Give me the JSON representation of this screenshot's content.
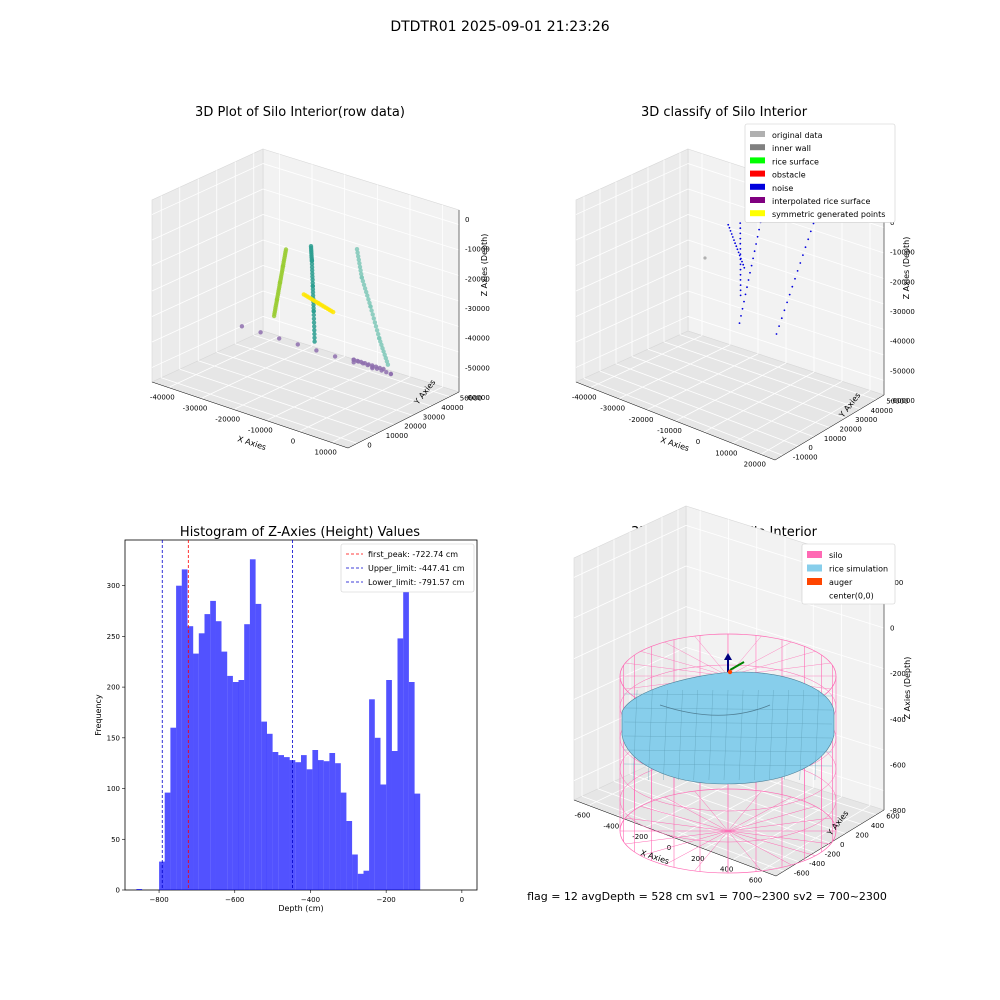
{
  "figure": {
    "title": "DTDTR01 2025-09-01 21:23:26",
    "footer": "flag = 12   avgDepth = 528 cm  sv1 = 700~2300  sv2 = 700~2300"
  },
  "chart_data": [
    {
      "id": "raw",
      "type": "scatter3d",
      "title": "3D Plot of Silo Interior(row data)",
      "xlabel": "X Axies",
      "ylabel": "Y Axies",
      "zlabel": "Z Axies (Depth)",
      "xticks": [
        "-40000",
        "-30000",
        "-20000",
        "-10000",
        "0",
        "10000"
      ],
      "yticks": [
        "0",
        "10000",
        "20000",
        "30000",
        "40000",
        "50000"
      ],
      "zticks": [
        "0",
        "-10000",
        "-20000",
        "-30000",
        "-40000",
        "-50000",
        "-60000"
      ],
      "xlim": [
        -42000,
        15000
      ],
      "ylim": [
        -5000,
        52000
      ],
      "zlim": [
        -68000,
        2000
      ],
      "colormap": "viridis",
      "series": [
        {
          "x": [
            -7000,
            -9000,
            -11000,
            -13000,
            -15000
          ],
          "y": [
            2000,
            4000,
            6000,
            8000,
            10000
          ],
          "z": [
            -4000,
            -12000,
            -20000,
            -28000,
            -36000
          ],
          "color": "#9acd32"
        },
        {
          "x": [
            -2000,
            -4000,
            -6000,
            -8000,
            -10000
          ],
          "y": [
            6000,
            10000,
            14000,
            18000,
            22000
          ],
          "z": [
            -2000,
            -10000,
            -22000,
            -34000,
            -48000
          ],
          "color": "#2a9d8f"
        },
        {
          "x": [
            8000,
            6000,
            4000,
            2000,
            0
          ],
          "y": [
            12000,
            18000,
            26000,
            34000,
            42000
          ],
          "z": [
            -1000,
            -15000,
            -30000,
            -46000,
            -60000
          ],
          "color": "#7fc8b8"
        },
        {
          "x": [
            -12000,
            -10000,
            -8000
          ],
          "y": [
            20000,
            24000,
            28000
          ],
          "z": [
            -30000,
            -34000,
            -38000
          ],
          "color": "#ffe600"
        },
        {
          "x": [
            -30000,
            2000,
            -6000,
            -3000
          ],
          "y": [
            20000,
            40000,
            35000,
            45000
          ],
          "z": [
            -50000,
            -62000,
            -58000,
            -64000
          ],
          "color": "#8e6fae"
        }
      ]
    },
    {
      "id": "classify",
      "type": "scatter3d",
      "title": "3D classify of Silo Interior",
      "xlabel": "X Axies",
      "ylabel": "Y Axies",
      "zlabel": "Z Axies (Depth)",
      "xticks": [
        "-40000",
        "-30000",
        "-20000",
        "-10000",
        "0",
        "10000",
        "20000"
      ],
      "yticks": [
        "-10000",
        "0",
        "10000",
        "20000",
        "30000",
        "40000",
        "50000"
      ],
      "zticks": [
        "0",
        "-10000",
        "-20000",
        "-30000",
        "-40000",
        "-50000",
        "-60000"
      ],
      "legend": [
        {
          "label": "original data",
          "color": "#b0b0b0"
        },
        {
          "label": "inner wall",
          "color": "#808080"
        },
        {
          "label": "rice surface",
          "color": "#00ff00"
        },
        {
          "label": "obstacle",
          "color": "#ff0000"
        },
        {
          "label": "noise",
          "color": "#0000dd"
        },
        {
          "label": "interpolated rice surface",
          "color": "#800080"
        },
        {
          "label": "symmetric generated points",
          "color": "#ffff00"
        }
      ],
      "legend_position": "upper right"
    },
    {
      "id": "hist",
      "type": "bar",
      "title": "Histogram of Z-Axies (Height) Values",
      "xlabel": "Depth (cm)",
      "ylabel": "Frequency",
      "xlim": [
        -890,
        40
      ],
      "ylim": [
        0,
        345
      ],
      "xticks": [
        -800,
        -600,
        -400,
        -200,
        0
      ],
      "yticks": [
        0,
        50,
        100,
        150,
        200,
        250,
        300
      ],
      "bar_color": "#0000ff",
      "bin_width": 15,
      "bins": [
        [
          -860,
          1
        ],
        [
          -800,
          28
        ],
        [
          -785,
          96
        ],
        [
          -770,
          160
        ],
        [
          -755,
          300
        ],
        [
          -740,
          316
        ],
        [
          -725,
          260
        ],
        [
          -710,
          233
        ],
        [
          -695,
          253
        ],
        [
          -680,
          272
        ],
        [
          -665,
          285
        ],
        [
          -650,
          265
        ],
        [
          -635,
          235
        ],
        [
          -620,
          211
        ],
        [
          -605,
          205
        ],
        [
          -590,
          207
        ],
        [
          -575,
          262
        ],
        [
          -560,
          326
        ],
        [
          -545,
          282
        ],
        [
          -530,
          166
        ],
        [
          -515,
          154
        ],
        [
          -500,
          136
        ],
        [
          -485,
          133
        ],
        [
          -470,
          131
        ],
        [
          -455,
          128
        ],
        [
          -440,
          126
        ],
        [
          -425,
          133
        ],
        [
          -410,
          119
        ],
        [
          -395,
          138
        ],
        [
          -380,
          128
        ],
        [
          -365,
          127
        ],
        [
          -350,
          135
        ],
        [
          -335,
          125
        ],
        [
          -320,
          96
        ],
        [
          -305,
          68
        ],
        [
          -290,
          35
        ],
        [
          -275,
          16
        ],
        [
          -260,
          19
        ],
        [
          -245,
          188
        ],
        [
          -230,
          150
        ],
        [
          -215,
          104
        ],
        [
          -200,
          207
        ],
        [
          -185,
          137
        ],
        [
          -170,
          248
        ],
        [
          -155,
          300
        ],
        [
          -140,
          205
        ],
        [
          -125,
          95
        ]
      ],
      "vlines": [
        {
          "label": "first_peak: -722.74 cm",
          "value": -722.74,
          "color": "#ff0000"
        },
        {
          "label": "Upper_limit: -447.41 cm",
          "value": -447.41,
          "color": "#0000cc"
        },
        {
          "label": "Lower_limit: -791.57 cm",
          "value": -791.57,
          "color": "#0000cc"
        }
      ],
      "legend_position": "upper right"
    },
    {
      "id": "sim",
      "type": "surface3d",
      "title": "3D simulation of Silo Interior",
      "xlabel": "X Axies",
      "ylabel": "Y Axies",
      "zlabel": "Z Axies (Depth)",
      "xticks": [
        "-600",
        "-400",
        "-200",
        "0",
        "200",
        "400",
        "600"
      ],
      "yticks": [
        "-600",
        "-400",
        "-200",
        "0",
        "200",
        "400",
        "600"
      ],
      "zticks": [
        "200",
        "0",
        "-200",
        "-400",
        "-600",
        "-800"
      ],
      "legend": [
        {
          "label": "silo",
          "color": "#ff69b4"
        },
        {
          "label": "rice simulation",
          "color": "#87ceeb"
        },
        {
          "label": "auger",
          "color": "#ff4500"
        },
        {
          "label": "center(0,0)",
          "color": null
        }
      ],
      "legend_position": "upper right"
    }
  ]
}
